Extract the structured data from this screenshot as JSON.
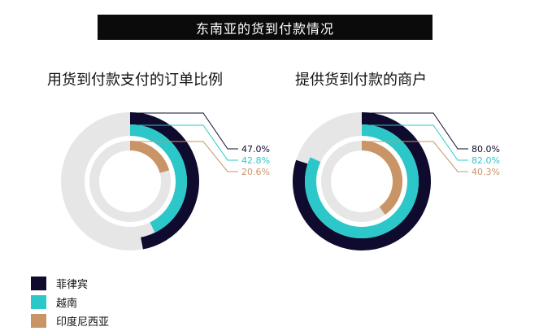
{
  "title": "东南亚的货到付款情况",
  "colors": {
    "track": "#e6e6e6"
  },
  "chart_data": [
    {
      "type": "radial-bar",
      "title": "用货到付款支付的订单比例",
      "unit": "%",
      "series": [
        {
          "name": "菲律宾",
          "value": 47.0,
          "label": "47.0%",
          "color": "#0e0b2e"
        },
        {
          "name": "越南",
          "value": 42.8,
          "label": "42.8%",
          "color": "#2cc7c9"
        },
        {
          "name": "印度尼西亚",
          "value": 20.6,
          "label": "20.6%",
          "color": "#c99466"
        }
      ]
    },
    {
      "type": "radial-bar",
      "title": "提供货到付款的商户",
      "unit": "%",
      "series": [
        {
          "name": "菲律宾",
          "value": 80.0,
          "label": "80.0%",
          "color": "#0e0b2e"
        },
        {
          "name": "越南",
          "value": 82.0,
          "label": "82.0%",
          "color": "#2cc7c9"
        },
        {
          "name": "印度尼西亚",
          "value": 40.3,
          "label": "40.3%",
          "color": "#c99466"
        }
      ]
    }
  ],
  "legend": [
    {
      "label": "菲律宾",
      "color": "#0e0b2e"
    },
    {
      "label": "越南",
      "color": "#2cc7c9"
    },
    {
      "label": "印度尼西亚",
      "color": "#c99466"
    }
  ]
}
